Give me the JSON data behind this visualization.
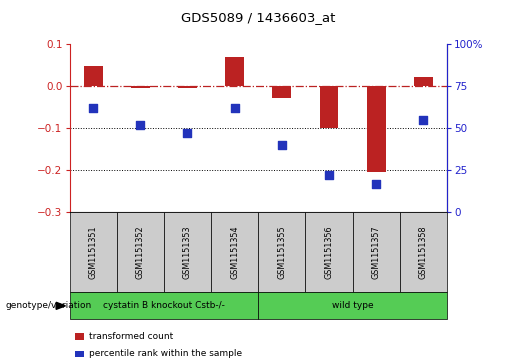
{
  "title": "GDS5089 / 1436603_at",
  "samples": [
    "GSM1151351",
    "GSM1151352",
    "GSM1151353",
    "GSM1151354",
    "GSM1151355",
    "GSM1151356",
    "GSM1151357",
    "GSM1151358"
  ],
  "bar_values": [
    0.047,
    -0.005,
    -0.005,
    0.068,
    -0.03,
    -0.1,
    -0.205,
    0.02
  ],
  "dot_values_pct": [
    62,
    52,
    47,
    62,
    40,
    22,
    17,
    55
  ],
  "groups": [
    {
      "label": "cystatin B knockout Cstb-/-",
      "start": 0,
      "end": 4,
      "color": "#66dd66"
    },
    {
      "label": "wild type",
      "start": 4,
      "end": 8,
      "color": "#66dd66"
    }
  ],
  "group_label": "genotype/variation",
  "ylim_left": [
    -0.3,
    0.1
  ],
  "ylim_right": [
    0,
    100
  ],
  "yticks_left": [
    0.1,
    0.0,
    -0.1,
    -0.2,
    -0.3
  ],
  "yticks_right": [
    100,
    75,
    50,
    25,
    0
  ],
  "hline_y": 0.0,
  "dotted_lines": [
    -0.1,
    -0.2
  ],
  "bar_color": "#bb2222",
  "dot_color": "#2233bb",
  "legend_items": [
    {
      "label": "transformed count",
      "color": "#bb2222"
    },
    {
      "label": "percentile rank within the sample",
      "color": "#2233bb"
    }
  ],
  "bar_width": 0.4,
  "dot_size": 35,
  "axis_color_left": "#cc2222",
  "axis_color_right": "#2222cc",
  "sample_box_color": "#cccccc",
  "group_box_color": "#55cc55"
}
